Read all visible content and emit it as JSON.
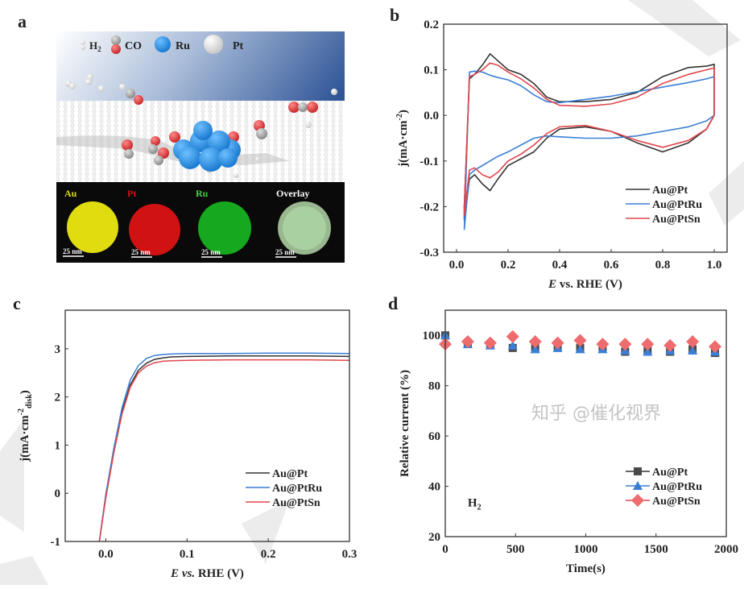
{
  "panel_labels": [
    "a",
    "b",
    "c",
    "d"
  ],
  "watermark": "知乎 @催化视界",
  "colors": {
    "Au@Pt": "#333333",
    "Au@PtRu": "#3a7fd5",
    "Au@PtSn": "#e0474c"
  },
  "panel_a": {
    "legend": {
      "h2": "H",
      "h2_sub": "2",
      "co": "CO",
      "ru": "Ru",
      "pt": "Pt"
    },
    "eds": [
      {
        "label": "Au",
        "color": "#e8e000",
        "scale": "25 nm"
      },
      {
        "label": "Pt",
        "color": "#d81010",
        "scale": "25 nm"
      },
      {
        "label": "Ru",
        "color": "#18b020",
        "scale": "25 nm"
      },
      {
        "label": "Overlay",
        "color": "#a8c8a0",
        "scale": "25 nm"
      }
    ]
  },
  "chart_data": [
    {
      "id": "b",
      "type": "line",
      "xlabel": {
        "italic": "E",
        "rest": " vs. RHE (V)"
      },
      "ylabel": {
        "main": "j(mA·cm",
        "sup": "-2",
        "sub": "",
        "close": ")"
      },
      "xlim": [
        -0.05,
        1.05
      ],
      "ylim": [
        -0.3,
        0.2
      ],
      "xticks": [
        0.0,
        0.2,
        0.4,
        0.6,
        0.8,
        1.0
      ],
      "xtick_labels": [
        "0.0",
        "0.2",
        "0.4",
        "0.6",
        "0.8",
        "1.0"
      ],
      "yticks": [
        -0.3,
        -0.2,
        -0.1,
        0.0,
        0.1,
        0.2
      ],
      "ytick_labels": [
        "-0.3",
        "-0.2",
        "-0.1",
        "0.0",
        "0.1",
        "0.2"
      ],
      "legend": "bottom-right",
      "x": [
        0.03,
        0.05,
        0.07,
        0.1,
        0.13,
        0.16,
        0.2,
        0.25,
        0.3,
        0.35,
        0.4,
        0.5,
        0.6,
        0.7,
        0.8,
        0.9,
        0.97,
        1.0
      ],
      "series": [
        {
          "name": "Au@Pt",
          "anodic": [
            -0.2,
            0.08,
            0.09,
            0.11,
            0.135,
            0.12,
            0.1,
            0.09,
            0.07,
            0.04,
            0.03,
            0.03,
            0.035,
            0.05,
            0.085,
            0.105,
            0.108,
            0.112
          ],
          "cathodic": [
            -0.23,
            -0.14,
            -0.13,
            -0.15,
            -0.165,
            -0.14,
            -0.11,
            -0.095,
            -0.08,
            -0.05,
            -0.03,
            -0.025,
            -0.035,
            -0.06,
            -0.08,
            -0.06,
            -0.03,
            0.0
          ]
        },
        {
          "name": "Au@PtRu",
          "anodic": [
            -0.25,
            0.095,
            0.097,
            0.095,
            0.088,
            0.083,
            0.078,
            0.065,
            0.045,
            0.03,
            0.028,
            0.035,
            0.042,
            0.052,
            0.062,
            0.072,
            0.08,
            0.085
          ],
          "cathodic": [
            -0.25,
            -0.13,
            -0.12,
            -0.11,
            -0.1,
            -0.09,
            -0.08,
            -0.065,
            -0.05,
            -0.045,
            -0.047,
            -0.05,
            -0.05,
            -0.045,
            -0.035,
            -0.025,
            -0.012,
            0.0
          ]
        },
        {
          "name": "Au@PtSn",
          "anodic": [
            -0.2,
            0.085,
            0.09,
            0.1,
            0.115,
            0.11,
            0.095,
            0.08,
            0.06,
            0.035,
            0.022,
            0.02,
            0.025,
            0.04,
            0.07,
            0.09,
            0.1,
            0.104
          ],
          "cathodic": [
            -0.22,
            -0.12,
            -0.115,
            -0.13,
            -0.137,
            -0.125,
            -0.1,
            -0.085,
            -0.065,
            -0.04,
            -0.025,
            -0.022,
            -0.035,
            -0.055,
            -0.07,
            -0.055,
            -0.03,
            0.0
          ]
        }
      ]
    },
    {
      "id": "c",
      "type": "line",
      "xlabel": {
        "italic": "E",
        "vs": " vs.",
        "rest": " RHE (V)"
      },
      "ylabel": {
        "main": "j(mA·cm",
        "sup": "-2",
        "sub": "disk",
        "close": ")"
      },
      "xlim": [
        -0.05,
        0.3
      ],
      "ylim": [
        -1,
        3.8
      ],
      "xticks": [
        0.0,
        0.1,
        0.2,
        0.3
      ],
      "xtick_labels": [
        "0.0",
        "0.1",
        "0.2",
        "0.3"
      ],
      "yticks": [
        -1,
        0,
        1,
        2,
        3
      ],
      "ytick_labels": [
        "-1",
        "0",
        "1",
        "2",
        "3"
      ],
      "legend": "bottom-right",
      "x": [
        -0.008,
        0,
        0.01,
        0.02,
        0.03,
        0.04,
        0.05,
        0.06,
        0.07,
        0.08,
        0.1,
        0.15,
        0.2,
        0.25,
        0.3
      ],
      "series": [
        {
          "name": "Au@Pt",
          "values": [
            -1,
            -0.05,
            0.9,
            1.7,
            2.25,
            2.55,
            2.7,
            2.78,
            2.81,
            2.83,
            2.84,
            2.85,
            2.85,
            2.85,
            2.84
          ]
        },
        {
          "name": "Au@PtRu",
          "values": [
            -1,
            -0.02,
            0.95,
            1.78,
            2.35,
            2.65,
            2.8,
            2.86,
            2.88,
            2.89,
            2.9,
            2.9,
            2.91,
            2.91,
            2.9
          ]
        },
        {
          "name": "Au@PtSn",
          "values": [
            -1,
            -0.1,
            0.85,
            1.65,
            2.2,
            2.5,
            2.64,
            2.71,
            2.74,
            2.75,
            2.76,
            2.77,
            2.77,
            2.77,
            2.76
          ]
        }
      ]
    },
    {
      "id": "d",
      "type": "scatter",
      "xlabel": {
        "rest": "Time(s)"
      },
      "ylabel": {
        "main": "Relative current (%)"
      },
      "annotation": {
        "main": "H",
        "sub": "2"
      },
      "xlim": [
        0,
        2000
      ],
      "ylim": [
        20,
        110
      ],
      "xticks": [
        0,
        500,
        1000,
        1500,
        2000
      ],
      "xtick_labels": [
        "0",
        "500",
        "1000",
        "1500",
        "2000"
      ],
      "yticks": [
        20,
        40,
        60,
        80,
        100
      ],
      "ytick_labels": [
        "20",
        "40",
        "60",
        "80",
        "100"
      ],
      "legend": "bottom-right",
      "x": [
        0,
        160,
        320,
        480,
        640,
        800,
        960,
        1120,
        1280,
        1440,
        1600,
        1760,
        1920
      ],
      "series": [
        {
          "name": "Au@Pt",
          "marker": "square",
          "values": [
            100,
            97,
            96.5,
            95,
            95,
            95.5,
            95,
            95,
            93.5,
            94,
            93.5,
            94.5,
            93
          ]
        },
        {
          "name": "Au@PtRu",
          "marker": "triangle",
          "values": [
            100,
            96.5,
            96,
            96,
            94.5,
            95,
            94.5,
            94.5,
            94,
            93.5,
            94,
            94,
            93.5
          ]
        },
        {
          "name": "Au@PtSn",
          "marker": "diamond",
          "values": [
            96.5,
            97.5,
            97,
            99.5,
            97.5,
            97,
            98,
            96.5,
            96.5,
            96.5,
            96,
            97.5,
            95.5
          ]
        }
      ]
    }
  ]
}
